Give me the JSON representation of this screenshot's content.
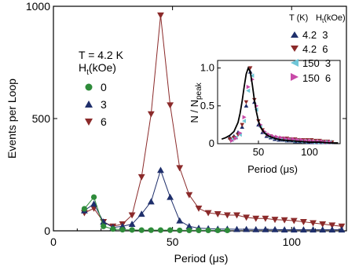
{
  "colors": {
    "green": "#2e8b3a",
    "navy": "#1f2f6b",
    "maroon": "#8b2a2a",
    "cyan": "#6fc6d8",
    "magenta": "#c84aa8",
    "black": "#000000"
  },
  "chart_data": [
    {
      "id": "main",
      "type": "line",
      "xlabel": "Period (μs)",
      "ylabel": "Events per Loop",
      "xlim": [
        0,
        123
      ],
      "ylim": [
        0,
        1000
      ],
      "xticks": [
        0,
        50,
        100
      ],
      "yticks": [
        0,
        500,
        1000
      ],
      "annotation": {
        "temperature": "T = 4.2 K",
        "field_prefix": "H",
        "field_sub": "t",
        "field_unit": "(kOe)"
      },
      "legend_position": "left-center",
      "series": [
        {
          "name": "0",
          "marker": "circle",
          "color": "green",
          "x": [
            13,
            17,
            21,
            25,
            29,
            33,
            37,
            41,
            45,
            49,
            53,
            57,
            61,
            65,
            69,
            73
          ],
          "y": [
            98,
            150,
            20,
            8,
            5,
            4,
            3,
            3,
            3,
            3,
            2,
            2,
            2,
            2,
            2,
            2
          ]
        },
        {
          "name": "3",
          "marker": "triangle-up",
          "color": "navy",
          "x": [
            13,
            17,
            21,
            25,
            29,
            33,
            37,
            41,
            45,
            49,
            53,
            57,
            61,
            65,
            69,
            73,
            77,
            81,
            85,
            89,
            93,
            97,
            101,
            105,
            109,
            113,
            117,
            121
          ],
          "y": [
            90,
            120,
            40,
            15,
            20,
            30,
            75,
            130,
            270,
            150,
            45,
            20,
            12,
            10,
            8,
            8,
            7,
            7,
            6,
            6,
            6,
            5,
            5,
            5,
            5,
            5,
            5,
            5
          ]
        },
        {
          "name": "6",
          "marker": "triangle-down",
          "color": "maroon",
          "x": [
            13,
            17,
            21,
            25,
            29,
            33,
            37,
            41,
            45,
            49,
            53,
            57,
            61,
            65,
            69,
            73,
            77,
            81,
            85,
            89,
            93,
            97,
            101,
            105,
            109,
            113,
            117,
            121
          ],
          "y": [
            80,
            100,
            40,
            20,
            30,
            70,
            240,
            520,
            960,
            560,
            280,
            160,
            100,
            80,
            75,
            70,
            70,
            60,
            55,
            55,
            50,
            48,
            45,
            40,
            35,
            30,
            25,
            20
          ]
        }
      ]
    },
    {
      "id": "inset",
      "type": "scatter",
      "xlabel": "Period (μs)",
      "ylabel_prefix": "N / N",
      "ylabel_sub": "peak",
      "xlim": [
        10,
        130
      ],
      "ylim": [
        0,
        1.1
      ],
      "xticks": [
        50,
        100
      ],
      "yticks": [
        0,
        0.5,
        1.0
      ],
      "ytick_labels": [
        "0",
        "0.5",
        "1.0"
      ],
      "legend_header": {
        "col1": "T (K)",
        "col2_prefix": "H",
        "col2_sub": "t",
        "col2_unit": "(kOe)"
      },
      "legend_position": "top-right",
      "series": [
        {
          "name": "4.2  3",
          "marker": "triangle-up",
          "color": "navy",
          "x": [
            22,
            26,
            30,
            34,
            38,
            42,
            46,
            50,
            54,
            58,
            62,
            66,
            70,
            74,
            78,
            82,
            86,
            90,
            94,
            98,
            102,
            106,
            110,
            114,
            118,
            122
          ],
          "y": [
            0.08,
            0.1,
            0.15,
            0.22,
            0.5,
            0.95,
            0.55,
            0.25,
            0.15,
            0.1,
            0.08,
            0.06,
            0.05,
            0.05,
            0.04,
            0.04,
            0.03,
            0.03,
            0.03,
            0.02,
            0.02,
            0.02,
            0.02,
            0.02,
            0.02,
            0.02
          ]
        },
        {
          "name": "4.2  6",
          "marker": "triangle-down",
          "color": "maroon",
          "x": [
            22,
            26,
            30,
            34,
            38,
            42,
            46,
            50,
            54,
            58,
            62,
            66,
            70,
            74,
            78,
            82,
            86,
            90,
            94,
            98,
            102,
            106,
            110,
            114,
            118,
            122
          ],
          "y": [
            0.06,
            0.08,
            0.12,
            0.25,
            0.55,
            1.0,
            0.58,
            0.3,
            0.18,
            0.12,
            0.1,
            0.08,
            0.07,
            0.07,
            0.07,
            0.06,
            0.06,
            0.05,
            0.05,
            0.05,
            0.05,
            0.04,
            0.04,
            0.03,
            0.03,
            0.02
          ]
        },
        {
          "name": "150  3",
          "marker": "triangle-left",
          "color": "cyan",
          "x": [
            24,
            28,
            32,
            36,
            40,
            44,
            48,
            52,
            56,
            60,
            64,
            68,
            72,
            76,
            80,
            84,
            88,
            92,
            96,
            100,
            104,
            108,
            112,
            116,
            120
          ],
          "y": [
            0.05,
            0.08,
            0.12,
            0.3,
            0.7,
            0.9,
            0.45,
            0.22,
            0.14,
            0.1,
            0.08,
            0.07,
            0.06,
            0.05,
            0.05,
            0.04,
            0.04,
            0.03,
            0.03,
            0.03,
            0.02,
            0.02,
            0.02,
            0.02,
            0.02
          ]
        },
        {
          "name": "150  6",
          "marker": "triangle-right",
          "color": "magenta",
          "x": [
            24,
            28,
            32,
            36,
            40,
            44,
            48,
            52,
            56,
            60,
            64,
            68,
            72,
            76,
            80,
            84,
            88,
            92,
            96,
            100,
            104,
            108,
            112,
            116,
            120
          ],
          "y": [
            0.04,
            0.07,
            0.14,
            0.35,
            0.75,
            0.85,
            0.5,
            0.25,
            0.16,
            0.12,
            0.1,
            0.09,
            0.08,
            0.07,
            0.06,
            0.06,
            0.05,
            0.05,
            0.04,
            0.04,
            0.03,
            0.03,
            0.03,
            0.02,
            0.02
          ]
        }
      ],
      "fit_line": {
        "color": "black",
        "x": [
          14,
          18,
          22,
          26,
          30,
          32,
          34,
          36,
          38,
          40,
          42,
          44,
          46,
          48,
          50,
          52,
          56,
          60,
          66,
          72,
          80,
          90,
          100,
          110,
          120,
          128
        ],
        "y": [
          0.06,
          0.08,
          0.11,
          0.16,
          0.28,
          0.4,
          0.56,
          0.75,
          0.92,
          1.0,
          0.95,
          0.78,
          0.58,
          0.42,
          0.3,
          0.22,
          0.14,
          0.1,
          0.07,
          0.05,
          0.04,
          0.03,
          0.02,
          0.02,
          0.01,
          0.01
        ]
      }
    }
  ]
}
